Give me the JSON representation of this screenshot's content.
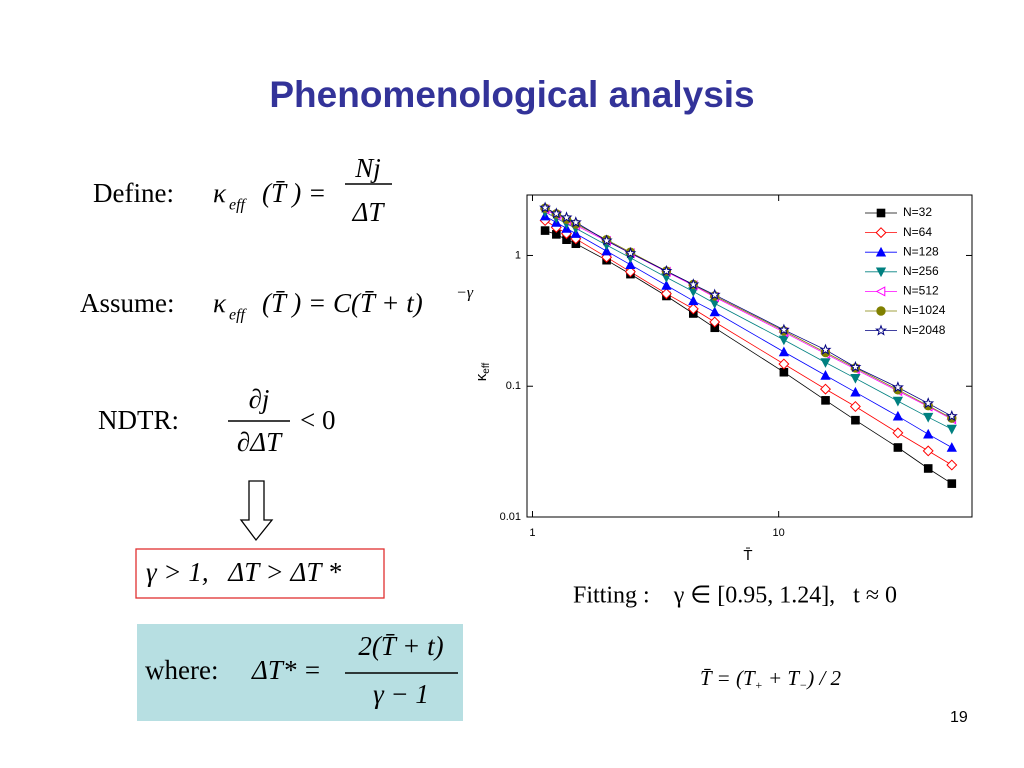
{
  "title": "Phenomenological analysis",
  "formulas": {
    "define": {
      "label": "Define:",
      "kappa": "κ",
      "sub": "eff",
      "arg": "(T̄ ) =",
      "num": "Nj",
      "den": "ΔT"
    },
    "assume": {
      "label": "Assume:",
      "kappa": "κ",
      "sub": "eff",
      "expr": "(T̄ ) = C(T̄ + t)",
      "exp": "−γ"
    },
    "ndtr": {
      "label": "NDTR:",
      "num": "∂j",
      "den": "∂ΔT",
      "rel": "< 0"
    },
    "condition": "γ > 1,   ΔT > ΔT *",
    "where": {
      "label": "where:",
      "lhs": "ΔT* =",
      "num": "2(T̄ + t)",
      "den": "γ − 1"
    },
    "fitting": "Fitting :    γ ∈ [0.95, 1.24],   t ≈ 0",
    "tbar": {
      "lhs": "T̄ = (T",
      "plus": "+",
      "mid": " + T",
      "minus": "−",
      "rhs": ") / 2"
    }
  },
  "page_number": "19",
  "chart_data": {
    "type": "line",
    "x_label": "T̄",
    "y_label": "κ",
    "y_label_sub": "eff",
    "x_scale": "log",
    "y_scale": "log",
    "xlim": [
      0.95,
      61
    ],
    "ylim": [
      0.01,
      2.9
    ],
    "xticks": [
      1,
      10
    ],
    "yticks": [
      0.01,
      0.1,
      1
    ],
    "legend": "top-right",
    "x": [
      1.125,
      1.25,
      1.375,
      1.5,
      2,
      2.5,
      3.5,
      4.5,
      5.5,
      10.5,
      15.5,
      20.5,
      30.5,
      40.5,
      50.5
    ],
    "series": [
      {
        "name": "N=32",
        "color": "#000000",
        "marker": "square",
        "filled": true,
        "values": [
          1.55,
          1.45,
          1.32,
          1.23,
          0.92,
          0.72,
          0.49,
          0.36,
          0.28,
          0.128,
          0.078,
          0.055,
          0.034,
          0.0235,
          0.018
        ]
      },
      {
        "name": "N=64",
        "color": "#ff0000",
        "marker": "diamond",
        "filled": false,
        "values": [
          1.85,
          1.64,
          1.47,
          1.34,
          0.97,
          0.75,
          0.51,
          0.39,
          0.31,
          0.148,
          0.095,
          0.07,
          0.044,
          0.032,
          0.025
        ]
      },
      {
        "name": "N=128",
        "color": "#0000ff",
        "marker": "triangle-up",
        "filled": true,
        "values": [
          2.0,
          1.79,
          1.61,
          1.47,
          1.08,
          0.85,
          0.59,
          0.45,
          0.37,
          0.183,
          0.121,
          0.09,
          0.059,
          0.043,
          0.034
        ]
      },
      {
        "name": "N=256",
        "color": "#008080",
        "marker": "triangle-down",
        "filled": true,
        "values": [
          2.15,
          1.93,
          1.75,
          1.61,
          1.2,
          0.96,
          0.68,
          0.53,
          0.43,
          0.226,
          0.152,
          0.115,
          0.077,
          0.058,
          0.047
        ]
      },
      {
        "name": "N=512",
        "color": "#ff00ff",
        "marker": "triangle-left",
        "filled": false,
        "values": [
          2.25,
          2.03,
          1.85,
          1.7,
          1.29,
          1.04,
          0.75,
          0.59,
          0.48,
          0.259,
          0.177,
          0.135,
          0.092,
          0.07,
          0.056
        ]
      },
      {
        "name": "N=1024",
        "color": "#808000",
        "marker": "circle",
        "filled": true,
        "values": [
          2.3,
          2.08,
          1.89,
          1.74,
          1.32,
          1.06,
          0.76,
          0.6,
          0.49,
          0.265,
          0.181,
          0.138,
          0.094,
          0.071,
          0.057
        ]
      },
      {
        "name": "N=2048",
        "color": "#000080",
        "marker": "star",
        "filled": false,
        "values": [
          2.32,
          2.09,
          1.95,
          1.79,
          1.3,
          1.04,
          0.76,
          0.6,
          0.5,
          0.27,
          0.19,
          0.14,
          0.098,
          0.074,
          0.059
        ]
      }
    ]
  }
}
